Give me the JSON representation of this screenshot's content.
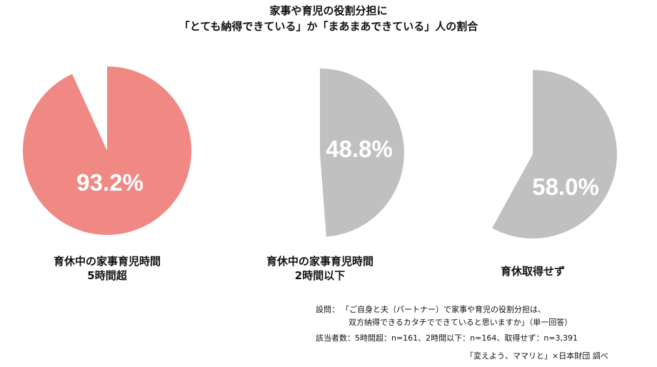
{
  "title": {
    "line1": "家事や育児の役割分担に",
    "line2": "「とても納得できている」か「まあまあできている」人の割合"
  },
  "chart_data": {
    "type": "pie",
    "charts": [
      {
        "category_line1": "育休中の家事育児時間",
        "category_line2": "5時間超",
        "value": 93.2,
        "label": "93.2%",
        "color": "#f08884"
      },
      {
        "category_line1": "育休中の家事育児時間",
        "category_line2": "2時間以下",
        "value": 48.8,
        "label": "48.8%",
        "color": "#c0c0c0"
      },
      {
        "category_line1": "育休取得せず",
        "category_line2": "",
        "value": 58.0,
        "label": "58.0%",
        "color": "#c0c0c0"
      }
    ],
    "unit": "%"
  },
  "notes": {
    "question_label": "設問：",
    "question_line1": "「ご自身と夫（パートナー）で家事や育児の役割分担は、",
    "question_line2": "双方納得できるカタチでできていると思いますか」（単一回答）",
    "sample": "該当者数：5時間超：n=161、2時間以下：n=164、取得せず：n=3,391",
    "source": "「変えよう、ママリと」×日本財団 調べ"
  }
}
